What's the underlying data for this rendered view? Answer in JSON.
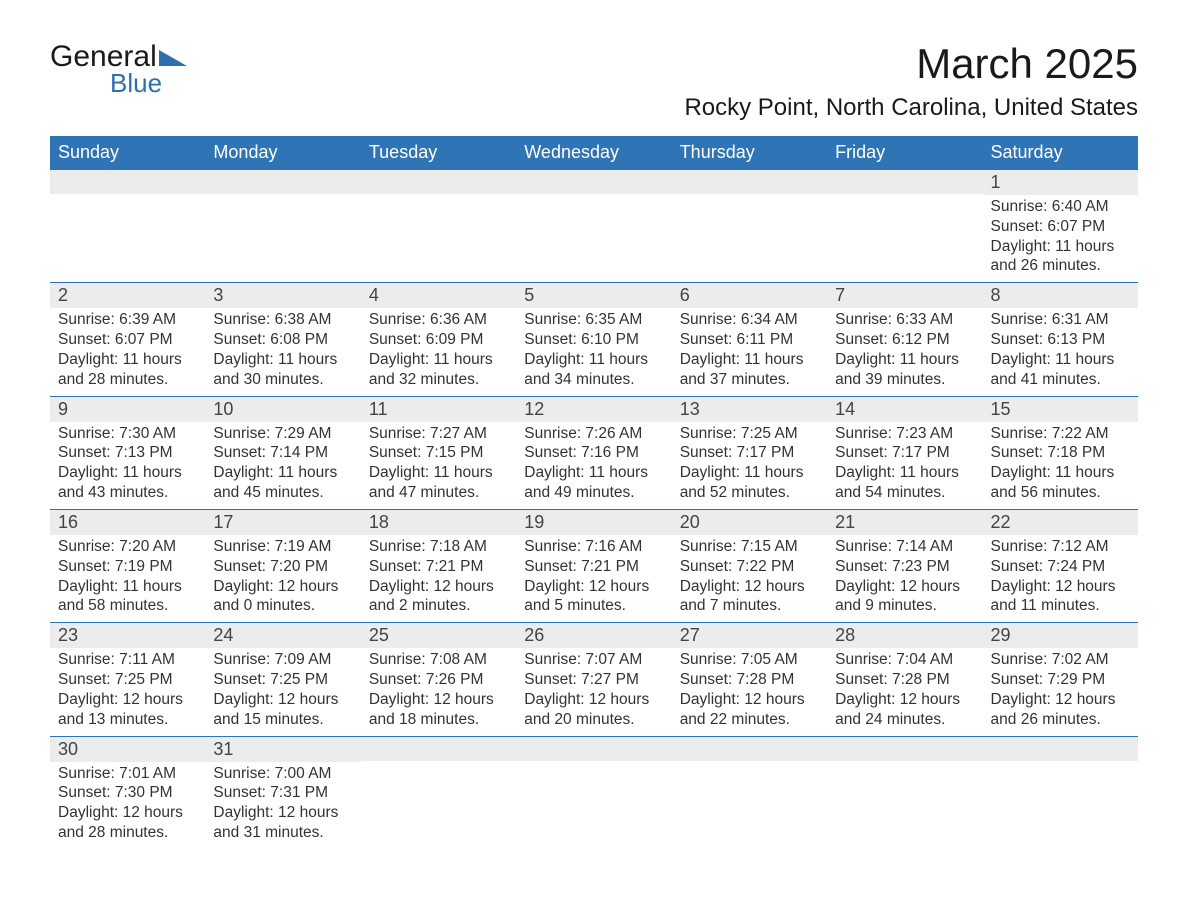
{
  "logo": {
    "general": "General",
    "blue": "Blue"
  },
  "header": {
    "month_title": "March 2025",
    "location": "Rocky Point, North Carolina, United States"
  },
  "colors": {
    "header_bg": "#2f74b5",
    "header_text": "#ffffff",
    "daynum_bg": "#ececec",
    "row_border": "#2f74b5",
    "body_text": "#333333",
    "logo_accent": "#2f6fb0",
    "page_bg": "#ffffff"
  },
  "layout": {
    "type": "table",
    "columns_count": 7,
    "rows_count": 6,
    "title_fontsize_pt": 32,
    "location_fontsize_pt": 18,
    "header_fontsize_pt": 14,
    "daynum_fontsize_pt": 14,
    "body_fontsize_pt": 12
  },
  "weekdays": [
    "Sunday",
    "Monday",
    "Tuesday",
    "Wednesday",
    "Thursday",
    "Friday",
    "Saturday"
  ],
  "weeks": [
    [
      null,
      null,
      null,
      null,
      null,
      null,
      {
        "n": "1",
        "sr": "Sunrise: 6:40 AM",
        "ss": "Sunset: 6:07 PM",
        "d1": "Daylight: 11 hours",
        "d2": "and 26 minutes."
      }
    ],
    [
      {
        "n": "2",
        "sr": "Sunrise: 6:39 AM",
        "ss": "Sunset: 6:07 PM",
        "d1": "Daylight: 11 hours",
        "d2": "and 28 minutes."
      },
      {
        "n": "3",
        "sr": "Sunrise: 6:38 AM",
        "ss": "Sunset: 6:08 PM",
        "d1": "Daylight: 11 hours",
        "d2": "and 30 minutes."
      },
      {
        "n": "4",
        "sr": "Sunrise: 6:36 AM",
        "ss": "Sunset: 6:09 PM",
        "d1": "Daylight: 11 hours",
        "d2": "and 32 minutes."
      },
      {
        "n": "5",
        "sr": "Sunrise: 6:35 AM",
        "ss": "Sunset: 6:10 PM",
        "d1": "Daylight: 11 hours",
        "d2": "and 34 minutes."
      },
      {
        "n": "6",
        "sr": "Sunrise: 6:34 AM",
        "ss": "Sunset: 6:11 PM",
        "d1": "Daylight: 11 hours",
        "d2": "and 37 minutes."
      },
      {
        "n": "7",
        "sr": "Sunrise: 6:33 AM",
        "ss": "Sunset: 6:12 PM",
        "d1": "Daylight: 11 hours",
        "d2": "and 39 minutes."
      },
      {
        "n": "8",
        "sr": "Sunrise: 6:31 AM",
        "ss": "Sunset: 6:13 PM",
        "d1": "Daylight: 11 hours",
        "d2": "and 41 minutes."
      }
    ],
    [
      {
        "n": "9",
        "sr": "Sunrise: 7:30 AM",
        "ss": "Sunset: 7:13 PM",
        "d1": "Daylight: 11 hours",
        "d2": "and 43 minutes."
      },
      {
        "n": "10",
        "sr": "Sunrise: 7:29 AM",
        "ss": "Sunset: 7:14 PM",
        "d1": "Daylight: 11 hours",
        "d2": "and 45 minutes."
      },
      {
        "n": "11",
        "sr": "Sunrise: 7:27 AM",
        "ss": "Sunset: 7:15 PM",
        "d1": "Daylight: 11 hours",
        "d2": "and 47 minutes."
      },
      {
        "n": "12",
        "sr": "Sunrise: 7:26 AM",
        "ss": "Sunset: 7:16 PM",
        "d1": "Daylight: 11 hours",
        "d2": "and 49 minutes."
      },
      {
        "n": "13",
        "sr": "Sunrise: 7:25 AM",
        "ss": "Sunset: 7:17 PM",
        "d1": "Daylight: 11 hours",
        "d2": "and 52 minutes."
      },
      {
        "n": "14",
        "sr": "Sunrise: 7:23 AM",
        "ss": "Sunset: 7:17 PM",
        "d1": "Daylight: 11 hours",
        "d2": "and 54 minutes."
      },
      {
        "n": "15",
        "sr": "Sunrise: 7:22 AM",
        "ss": "Sunset: 7:18 PM",
        "d1": "Daylight: 11 hours",
        "d2": "and 56 minutes."
      }
    ],
    [
      {
        "n": "16",
        "sr": "Sunrise: 7:20 AM",
        "ss": "Sunset: 7:19 PM",
        "d1": "Daylight: 11 hours",
        "d2": "and 58 minutes."
      },
      {
        "n": "17",
        "sr": "Sunrise: 7:19 AM",
        "ss": "Sunset: 7:20 PM",
        "d1": "Daylight: 12 hours",
        "d2": "and 0 minutes."
      },
      {
        "n": "18",
        "sr": "Sunrise: 7:18 AM",
        "ss": "Sunset: 7:21 PM",
        "d1": "Daylight: 12 hours",
        "d2": "and 2 minutes."
      },
      {
        "n": "19",
        "sr": "Sunrise: 7:16 AM",
        "ss": "Sunset: 7:21 PM",
        "d1": "Daylight: 12 hours",
        "d2": "and 5 minutes."
      },
      {
        "n": "20",
        "sr": "Sunrise: 7:15 AM",
        "ss": "Sunset: 7:22 PM",
        "d1": "Daylight: 12 hours",
        "d2": "and 7 minutes."
      },
      {
        "n": "21",
        "sr": "Sunrise: 7:14 AM",
        "ss": "Sunset: 7:23 PM",
        "d1": "Daylight: 12 hours",
        "d2": "and 9 minutes."
      },
      {
        "n": "22",
        "sr": "Sunrise: 7:12 AM",
        "ss": "Sunset: 7:24 PM",
        "d1": "Daylight: 12 hours",
        "d2": "and 11 minutes."
      }
    ],
    [
      {
        "n": "23",
        "sr": "Sunrise: 7:11 AM",
        "ss": "Sunset: 7:25 PM",
        "d1": "Daylight: 12 hours",
        "d2": "and 13 minutes."
      },
      {
        "n": "24",
        "sr": "Sunrise: 7:09 AM",
        "ss": "Sunset: 7:25 PM",
        "d1": "Daylight: 12 hours",
        "d2": "and 15 minutes."
      },
      {
        "n": "25",
        "sr": "Sunrise: 7:08 AM",
        "ss": "Sunset: 7:26 PM",
        "d1": "Daylight: 12 hours",
        "d2": "and 18 minutes."
      },
      {
        "n": "26",
        "sr": "Sunrise: 7:07 AM",
        "ss": "Sunset: 7:27 PM",
        "d1": "Daylight: 12 hours",
        "d2": "and 20 minutes."
      },
      {
        "n": "27",
        "sr": "Sunrise: 7:05 AM",
        "ss": "Sunset: 7:28 PM",
        "d1": "Daylight: 12 hours",
        "d2": "and 22 minutes."
      },
      {
        "n": "28",
        "sr": "Sunrise: 7:04 AM",
        "ss": "Sunset: 7:28 PM",
        "d1": "Daylight: 12 hours",
        "d2": "and 24 minutes."
      },
      {
        "n": "29",
        "sr": "Sunrise: 7:02 AM",
        "ss": "Sunset: 7:29 PM",
        "d1": "Daylight: 12 hours",
        "d2": "and 26 minutes."
      }
    ],
    [
      {
        "n": "30",
        "sr": "Sunrise: 7:01 AM",
        "ss": "Sunset: 7:30 PM",
        "d1": "Daylight: 12 hours",
        "d2": "and 28 minutes."
      },
      {
        "n": "31",
        "sr": "Sunrise: 7:00 AM",
        "ss": "Sunset: 7:31 PM",
        "d1": "Daylight: 12 hours",
        "d2": "and 31 minutes."
      },
      null,
      null,
      null,
      null,
      null
    ]
  ]
}
